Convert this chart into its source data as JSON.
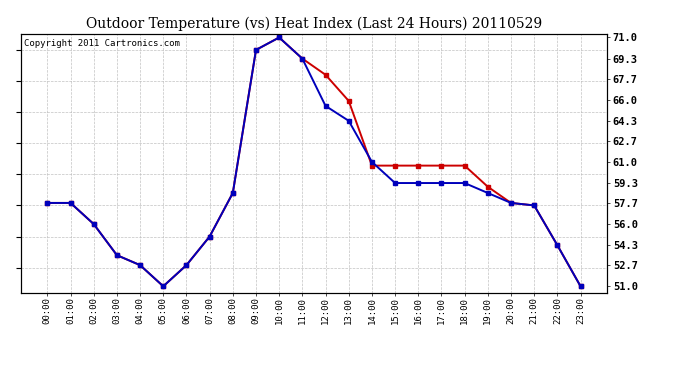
{
  "title": "Outdoor Temperature (vs) Heat Index (Last 24 Hours) 20110529",
  "copyright": "Copyright 2011 Cartronics.com",
  "x_labels": [
    "00:00",
    "01:00",
    "02:00",
    "03:00",
    "04:00",
    "05:00",
    "06:00",
    "07:00",
    "08:00",
    "09:00",
    "10:00",
    "11:00",
    "12:00",
    "13:00",
    "14:00",
    "15:00",
    "16:00",
    "17:00",
    "18:00",
    "19:00",
    "20:00",
    "21:00",
    "22:00",
    "23:00"
  ],
  "temp_red": [
    57.7,
    57.7,
    56.0,
    53.5,
    52.7,
    51.0,
    52.7,
    55.0,
    58.5,
    70.0,
    71.0,
    69.3,
    68.0,
    65.9,
    60.7,
    60.7,
    60.7,
    60.7,
    60.7,
    59.0,
    57.7,
    57.5,
    54.3,
    51.0
  ],
  "heat_blue": [
    57.7,
    57.7,
    56.0,
    53.5,
    52.7,
    51.0,
    52.7,
    55.0,
    58.5,
    70.0,
    71.0,
    69.3,
    65.5,
    64.3,
    61.0,
    59.3,
    59.3,
    59.3,
    59.3,
    58.5,
    57.7,
    57.5,
    54.3,
    51.0
  ],
  "ylim_min": 51.0,
  "ylim_max": 71.0,
  "yticks": [
    51.0,
    52.7,
    54.3,
    56.0,
    57.7,
    59.3,
    61.0,
    62.7,
    64.3,
    66.0,
    67.7,
    69.3,
    71.0
  ],
  "bg_color": "#ffffff",
  "plot_bg": "#ffffff",
  "grid_color": "#bbbbbb",
  "red_color": "#cc0000",
  "blue_color": "#0000bb",
  "title_fontsize": 10,
  "copyright_fontsize": 6.5,
  "marker": "s",
  "markersize": 3.0,
  "linewidth": 1.4
}
